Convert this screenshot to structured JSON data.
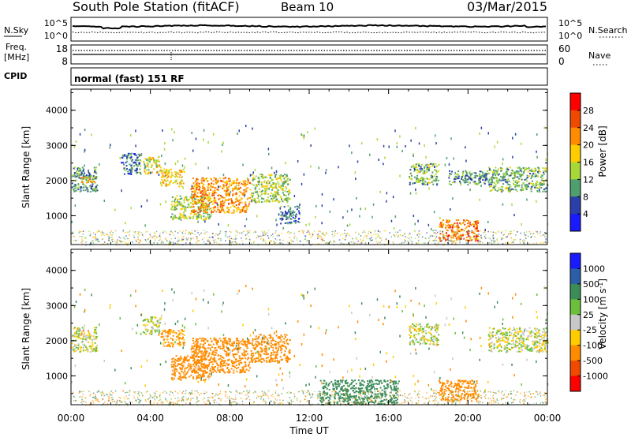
{
  "header": {
    "station": "South Pole Station (fitACF)",
    "beam": "Beam 10",
    "date": "03/Mar/2015"
  },
  "noise_panel": {
    "left_label": "N.Sky",
    "right_label": "N.Search",
    "left_ticks": [
      "10^5",
      "10^0"
    ],
    "right_ticks": [
      "10^5",
      "10^0"
    ]
  },
  "freq_panel": {
    "left_label_line1": "Freq.",
    "left_label_line2": "[MHz]",
    "left_ticks": [
      "18",
      "8"
    ],
    "right_label": "Nave",
    "right_ticks": [
      "60",
      "0"
    ]
  },
  "cpid": {
    "label": "CPID",
    "value": "normal (fast) 151 RF"
  },
  "chart_data": [
    {
      "type": "heatmap",
      "name": "power",
      "ylabel": "Slant Range [km]",
      "yticks": [
        "4000",
        "3000",
        "2000",
        "1000"
      ],
      "ylim": [
        180,
        4600
      ],
      "colorbar_label": "Power [dB]",
      "colorbar_ticks": [
        "28",
        "24",
        "20",
        "16",
        "12",
        "8",
        "4"
      ],
      "colorbar_colors": [
        "#ff0000",
        "#f04a00",
        "#ff8c00",
        "#ffcc00",
        "#a8d838",
        "#4f9e6e",
        "#2a3fa8",
        "#1a1aff"
      ],
      "regions": [
        {
          "t0": 0.0,
          "t1": 1.3,
          "r0": 1700,
          "r1": 2400,
          "level": 10
        },
        {
          "t0": 0.5,
          "t1": 1.2,
          "r0": 1950,
          "r1": 2150,
          "level": 18
        },
        {
          "t0": 2.5,
          "t1": 3.5,
          "r0": 2200,
          "r1": 2800,
          "level": 8
        },
        {
          "t0": 3.6,
          "t1": 4.5,
          "r0": 2200,
          "r1": 2700,
          "level": 16
        },
        {
          "t0": 4.5,
          "t1": 5.7,
          "r0": 1850,
          "r1": 2350,
          "level": 18
        },
        {
          "t0": 5.0,
          "t1": 7.0,
          "r0": 900,
          "r1": 1600,
          "level": 14
        },
        {
          "t0": 6.0,
          "t1": 9.0,
          "r0": 1100,
          "r1": 2100,
          "level": 22
        },
        {
          "t0": 9.0,
          "t1": 11.0,
          "r0": 1400,
          "r1": 2200,
          "level": 14
        },
        {
          "t0": 10.5,
          "t1": 11.5,
          "r0": 800,
          "r1": 1300,
          "level": 8
        },
        {
          "t0": 17.0,
          "t1": 18.5,
          "r0": 1900,
          "r1": 2500,
          "level": 12
        },
        {
          "t0": 18.5,
          "t1": 20.5,
          "r0": 300,
          "r1": 900,
          "level": 24
        },
        {
          "t0": 21.0,
          "t1": 24.0,
          "r0": 1700,
          "r1": 2400,
          "level": 12
        },
        {
          "t0": 19.0,
          "t1": 21.0,
          "r0": 1900,
          "r1": 2300,
          "level": 10
        }
      ]
    },
    {
      "type": "heatmap",
      "name": "velocity",
      "ylabel": "Slant Range [km]",
      "yticks": [
        "4000",
        "3000",
        "2000",
        "1000"
      ],
      "ylim": [
        180,
        4600
      ],
      "colorbar_label": "Velocity [m s",
      "colorbar_label_sup": "-1",
      "colorbar_label_end": "]",
      "colorbar_ticks": [
        "1000",
        "500",
        "100",
        "25",
        "-25",
        "-100",
        "-500",
        "-1000"
      ],
      "colorbar_colors": [
        "#1a1aff",
        "#2a5fa8",
        "#3c8c5a",
        "#6abf3c",
        "#c8c8c8",
        "#ffcc00",
        "#ff8c00",
        "#f04a00",
        "#ff0000"
      ],
      "regions": [
        {
          "t0": 0.0,
          "t1": 1.3,
          "r0": 1700,
          "r1": 2400,
          "vel": 0
        },
        {
          "t0": 3.6,
          "t1": 4.5,
          "r0": 2200,
          "r1": 2700,
          "vel": 0
        },
        {
          "t0": 4.5,
          "t1": 5.7,
          "r0": 1850,
          "r1": 2350,
          "vel": -150
        },
        {
          "t0": 5.0,
          "t1": 7.0,
          "r0": 900,
          "r1": 1600,
          "vel": -300
        },
        {
          "t0": 6.0,
          "t1": 9.0,
          "r0": 1100,
          "r1": 2100,
          "vel": -400
        },
        {
          "t0": 9.0,
          "t1": 11.0,
          "r0": 1400,
          "r1": 2200,
          "vel": -300
        },
        {
          "t0": 12.5,
          "t1": 16.5,
          "r0": 200,
          "r1": 900,
          "vel": 300
        },
        {
          "t0": 17.0,
          "t1": 18.5,
          "r0": 1900,
          "r1": 2500,
          "vel": 0
        },
        {
          "t0": 18.5,
          "t1": 20.5,
          "r0": 300,
          "r1": 900,
          "vel": -300
        },
        {
          "t0": 21.0,
          "t1": 24.0,
          "r0": 1700,
          "r1": 2400,
          "vel": 0
        }
      ]
    }
  ],
  "time_axis": {
    "ticks": [
      "00:00",
      "04:00",
      "08:00",
      "12:00",
      "16:00",
      "20:00",
      "00:00"
    ],
    "label": "Time UT",
    "range": [
      0,
      24
    ]
  }
}
